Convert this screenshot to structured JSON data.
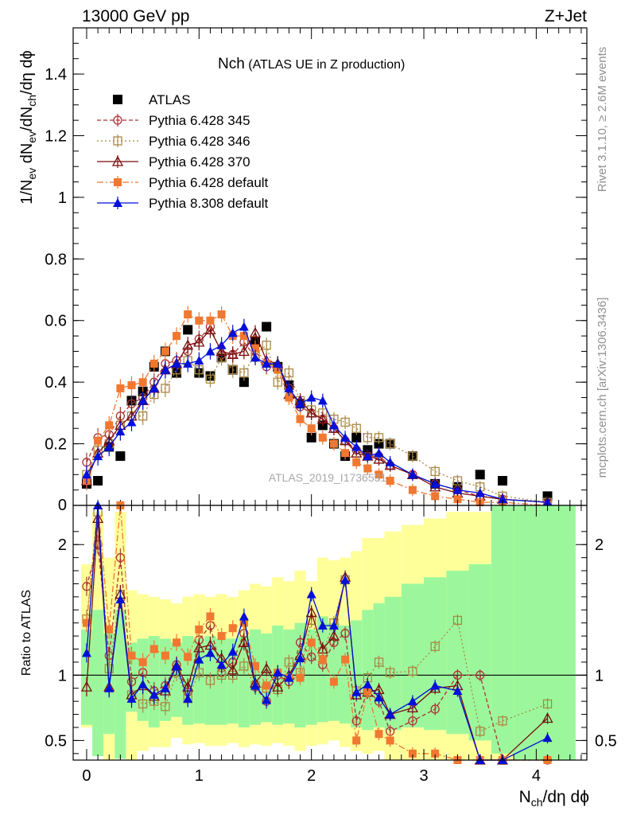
{
  "header": {
    "left": "13000 GeV pp",
    "right": "Z+Jet"
  },
  "side_texts": {
    "rivet": "Rivet 3.1.10, ≥ 2.6M events",
    "mcplots": "mcplots.cern.ch [arXiv:1306.3436]"
  },
  "watermark": "ATLAS_2019_I1736531",
  "colors": {
    "atlas": "#000000",
    "p345": "#aa3333",
    "p346": "#aa8844",
    "p370": "#7a0e0e",
    "pdefault": "#f07830",
    "p8": "#0010d8",
    "band_green": "#9cf79c",
    "band_yellow": "#ffff9a"
  },
  "chart_data": [
    {
      "type": "scatter",
      "title_main": "Nch",
      "title_sub": " (ATLAS UE in Z production)",
      "ylabel": "1/N_ev dN_ev/dN_ch/dη dϕ",
      "xlim": [
        -0.12,
        4.45
      ],
      "ylim": [
        0,
        1.55
      ],
      "yticks": [
        {
          "v": 0.2,
          "label": "0.2"
        },
        {
          "v": 0.4,
          "label": "0.4"
        },
        {
          "v": 0.6,
          "label": "0.6"
        },
        {
          "v": 0.8,
          "label": "0.8"
        },
        {
          "v": 1.0,
          "label": "1"
        },
        {
          "v": 1.2,
          "label": "1.2"
        },
        {
          "v": 1.4,
          "label": "1.4"
        }
      ],
      "ytick_zero_label": "0",
      "x": [
        0,
        0.1,
        0.2,
        0.3,
        0.4,
        0.5,
        0.6,
        0.7,
        0.8,
        0.9,
        1.0,
        1.1,
        1.2,
        1.3,
        1.4,
        1.5,
        1.6,
        1.7,
        1.8,
        1.9,
        2.0,
        2.1,
        2.2,
        2.3,
        2.4,
        2.5,
        2.6,
        2.7,
        2.9,
        3.1,
        3.3,
        3.5,
        3.7,
        4.1
      ],
      "series": [
        {
          "name": "ATLAS",
          "style": "atlas",
          "values": [
            0.07,
            0.08,
            0.19,
            0.16,
            0.34,
            0.37,
            0.45,
            0.5,
            0.43,
            0.57,
            0.43,
            0.42,
            0.48,
            0.44,
            0.4,
            0.53,
            0.58,
            0.45,
            0.39,
            0.33,
            0.22,
            0.26,
            0.2,
            0.16,
            0.22,
            0.18,
            0.2,
            0.2,
            0.16,
            0.07,
            0.06,
            0.1,
            0.08,
            0.03
          ]
        },
        {
          "name": "Pythia 6.428 345",
          "style": "p345",
          "values": [
            0.14,
            0.22,
            0.23,
            0.29,
            0.33,
            0.35,
            0.4,
            0.46,
            0.47,
            0.5,
            0.54,
            0.58,
            0.49,
            0.49,
            0.53,
            0.48,
            0.45,
            0.45,
            0.38,
            0.32,
            0.3,
            0.28,
            0.25,
            0.21,
            0.18,
            0.16,
            0.16,
            0.13,
            0.1,
            0.07,
            0.05,
            0.03,
            0.02,
            0.01
          ]
        },
        {
          "name": "Pythia 6.428 346",
          "style": "p346",
          "values": [
            0.1,
            0.18,
            0.2,
            0.26,
            0.29,
            0.29,
            0.36,
            0.38,
            0.44,
            0.47,
            0.44,
            0.41,
            0.48,
            0.44,
            0.43,
            0.49,
            0.52,
            0.4,
            0.43,
            0.34,
            0.31,
            0.3,
            0.28,
            0.27,
            0.25,
            0.22,
            0.22,
            0.2,
            0.16,
            0.11,
            0.08,
            0.06,
            0.03,
            0.01
          ]
        },
        {
          "name": "Pythia 6.428 370",
          "style": "p370",
          "values": [
            0.08,
            0.17,
            0.21,
            0.26,
            0.29,
            0.34,
            0.38,
            0.44,
            0.46,
            0.52,
            0.53,
            0.57,
            0.5,
            0.49,
            0.5,
            0.56,
            0.47,
            0.46,
            0.36,
            0.34,
            0.3,
            0.28,
            0.25,
            0.21,
            0.17,
            0.16,
            0.15,
            0.13,
            0.1,
            0.06,
            0.04,
            0.03,
            0.02,
            0.01
          ]
        },
        {
          "name": "Pythia 6.428 default",
          "style": "pdefault",
          "values": [
            0.08,
            0.21,
            0.26,
            0.38,
            0.39,
            0.4,
            0.46,
            0.5,
            0.55,
            0.62,
            0.6,
            0.6,
            0.62,
            0.55,
            0.55,
            0.51,
            0.46,
            0.44,
            0.35,
            0.28,
            0.25,
            0.22,
            0.2,
            0.17,
            0.14,
            0.12,
            0.1,
            0.08,
            0.05,
            0.03,
            0.02,
            0.01,
            0.01,
            0.0
          ]
        },
        {
          "name": "Pythia 8.308 default",
          "style": "p8",
          "values": [
            0.1,
            0.16,
            0.19,
            0.24,
            0.27,
            0.34,
            0.38,
            0.44,
            0.46,
            0.46,
            0.47,
            0.5,
            0.52,
            0.56,
            0.58,
            0.48,
            0.46,
            0.46,
            0.38,
            0.33,
            0.35,
            0.34,
            0.26,
            0.22,
            0.19,
            0.16,
            0.17,
            0.14,
            0.1,
            0.07,
            0.05,
            0.04,
            0.02,
            0.01
          ]
        }
      ]
    },
    {
      "type": "scatter",
      "ylabel": "Ratio to ATLAS",
      "xlabel": "N_ch/dη dϕ",
      "xlim": [
        -0.12,
        4.45
      ],
      "ylim": [
        0.35,
        2.3
      ],
      "yticks": [
        {
          "v": 0.5,
          "label": "0.5"
        },
        {
          "v": 1.0,
          "label": "1"
        },
        {
          "v": 2.0,
          "label": "2"
        }
      ],
      "xticks": [
        {
          "v": 0,
          "label": "0"
        },
        {
          "v": 1,
          "label": "1"
        },
        {
          "v": 2,
          "label": "2"
        },
        {
          "v": 3,
          "label": "3"
        },
        {
          "v": 4,
          "label": "4"
        }
      ],
      "x": [
        0,
        0.1,
        0.2,
        0.3,
        0.4,
        0.5,
        0.6,
        0.7,
        0.8,
        0.9,
        1.0,
        1.1,
        1.2,
        1.3,
        1.4,
        1.5,
        1.6,
        1.7,
        1.8,
        1.9,
        2.0,
        2.1,
        2.2,
        2.3,
        2.4,
        2.5,
        2.6,
        2.7,
        2.9,
        3.1,
        3.3,
        3.5,
        3.7,
        4.1
      ],
      "bands": {
        "edges": [
          -0.05,
          0.05,
          0.15,
          0.25,
          0.35,
          0.45,
          0.55,
          0.65,
          0.75,
          0.85,
          0.95,
          1.05,
          1.15,
          1.25,
          1.35,
          1.45,
          1.55,
          1.65,
          1.75,
          1.85,
          1.95,
          2.05,
          2.15,
          2.25,
          2.35,
          2.45,
          2.55,
          2.65,
          2.8,
          3.0,
          3.2,
          3.4,
          3.6,
          3.8,
          4.35
        ],
        "green_lo": [
          0.62,
          0.38,
          0.55,
          0.36,
          0.72,
          0.65,
          0.6,
          0.65,
          0.68,
          0.62,
          0.63,
          0.62,
          0.62,
          0.63,
          0.6,
          0.62,
          0.64,
          0.62,
          0.63,
          0.6,
          0.62,
          0.64,
          0.65,
          0.63,
          0.6,
          0.58,
          0.6,
          0.58,
          0.6,
          0.58,
          0.55,
          0.5,
          0.4,
          0.35
        ],
        "green_hi": [
          1.35,
          1.5,
          1.32,
          1.5,
          1.25,
          1.28,
          1.3,
          1.28,
          1.25,
          1.3,
          1.28,
          1.3,
          1.28,
          1.28,
          1.3,
          1.35,
          1.32,
          1.38,
          1.35,
          1.4,
          1.35,
          1.45,
          1.4,
          1.38,
          1.42,
          1.5,
          1.55,
          1.6,
          1.7,
          1.75,
          1.8,
          1.85,
          2.3,
          2.3
        ],
        "yellow_lo": [
          0.6,
          0.55,
          0.35,
          0.58,
          0.35,
          0.42,
          0.45,
          0.45,
          0.52,
          0.47,
          0.48,
          0.46,
          0.46,
          0.48,
          0.45,
          0.47,
          0.46,
          0.48,
          0.46,
          0.42,
          0.46,
          0.47,
          0.5,
          0.45,
          0.42,
          0.4,
          0.42,
          0.35,
          0.35,
          0.35,
          0.35,
          0.35,
          0.35,
          0.35
        ],
        "yellow_hi": [
          1.85,
          2.25,
          1.9,
          2.25,
          1.65,
          1.62,
          1.6,
          1.58,
          1.55,
          1.6,
          1.62,
          1.6,
          1.62,
          1.6,
          1.65,
          1.7,
          1.68,
          1.75,
          1.72,
          1.8,
          1.72,
          1.9,
          1.88,
          1.9,
          1.95,
          2.05,
          2.05,
          2.1,
          2.15,
          2.2,
          2.25,
          2.25,
          2.3,
          2.3
        ]
      },
      "series": [
        {
          "name": "Pythia 6.428 345",
          "style": "p345",
          "values": [
            1.68,
            2.0,
            1.15,
            1.9,
            0.95,
            1.02,
            0.88,
            0.92,
            1.08,
            0.87,
            1.27,
            1.38,
            1.02,
            1.1,
            1.32,
            0.91,
            0.8,
            1.0,
            0.95,
            1.25,
            1.14,
            1.08,
            1.25,
            1.32,
            0.65,
            0.88,
            0.8,
            0.57,
            0.65,
            0.74,
            1.0,
            1.0,
            0.35,
            0.35
          ]
        },
        {
          "name": "Pythia 6.428 346",
          "style": "p346",
          "values": [
            1.43,
            2.25,
            1.05,
            1.62,
            0.85,
            0.78,
            0.8,
            0.76,
            1.02,
            0.82,
            1.02,
            0.96,
            1.0,
            1.0,
            1.07,
            0.92,
            0.9,
            0.89,
            1.1,
            1.02,
            1.42,
            1.18,
            1.4,
            1.73,
            0.88,
            0.98,
            1.1,
            1.02,
            1.03,
            1.22,
            1.42,
            0.57,
            0.65,
            0.78
          ]
        },
        {
          "name": "Pythia 6.428 370",
          "style": "p370",
          "values": [
            0.91,
            2.2,
            0.91,
            1.62,
            0.85,
            0.92,
            0.84,
            0.88,
            1.07,
            0.91,
            1.21,
            1.23,
            1.13,
            1.04,
            1.25,
            0.94,
            1.05,
            0.91,
            1.0,
            1.15,
            1.48,
            1.2,
            1.3,
            1.75,
            0.85,
            0.87,
            0.89,
            0.7,
            0.75,
            0.9,
            0.92,
            0.35,
            0.35,
            0.67
          ]
        },
        {
          "name": "Pythia 6.428 default",
          "style": "pdefault",
          "values": [
            1.4,
            2.35,
            1.35,
            2.3,
            1.15,
            1.1,
            1.2,
            1.15,
            1.25,
            1.14,
            1.35,
            1.45,
            1.3,
            1.36,
            1.4,
            1.07,
            0.92,
            1.02,
            0.98,
            0.98,
            1.25,
            1.12,
            0.95,
            1.12,
            0.5,
            0.88,
            0.55,
            0.5,
            0.4,
            0.4,
            0.35,
            0.35,
            0.35,
            0.35
          ]
        },
        {
          "name": "Pythia 8.308 default",
          "style": "p8",
          "values": [
            1.17,
            2.3,
            0.9,
            1.58,
            0.82,
            0.93,
            0.85,
            0.9,
            1.07,
            0.82,
            1.12,
            1.17,
            1.08,
            1.18,
            1.45,
            0.92,
            0.81,
            1.02,
            0.98,
            1.13,
            1.62,
            1.38,
            1.38,
            1.73,
            0.87,
            0.93,
            0.83,
            0.7,
            0.8,
            0.92,
            0.88,
            0.35,
            0.35,
            0.52
          ]
        }
      ]
    }
  ]
}
